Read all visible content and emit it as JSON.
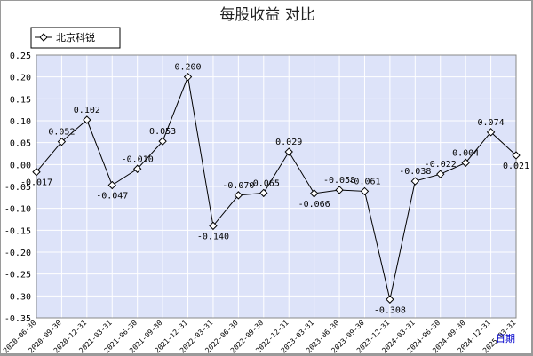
{
  "chart_data": {
    "type": "line",
    "title": "每股收益 对比",
    "period_label": "日期",
    "ylim": [
      -0.35,
      0.25
    ],
    "y_ticks": [
      "0.25",
      "0.20",
      "0.15",
      "0.10",
      "0.05",
      "0.00",
      "-0.05",
      "-0.10",
      "-0.15",
      "-0.20",
      "-0.25",
      "-0.30",
      "-0.35"
    ],
    "grid": true,
    "legend_position": "top-left",
    "colors": {
      "plot_bg": "#dde3f9",
      "grid": "#ffffff",
      "line": "#000000",
      "marker_fill": "#ffffff"
    },
    "categories": [
      "2020-06-30",
      "2020-09-30",
      "2020-12-31",
      "2021-03-31",
      "2021-06-30",
      "2021-09-30",
      "2021-12-31",
      "2022-03-31",
      "2022-06-30",
      "2022-09-30",
      "2022-12-31",
      "2023-03-31",
      "2023-06-30",
      "2023-09-30",
      "2023-12-31",
      "2024-03-31",
      "2024-06-30",
      "2024-09-30",
      "2024-12-31",
      "2025-03-31"
    ],
    "series": [
      {
        "name": "北京科锐",
        "values": [
          -0.017,
          0.052,
          0.102,
          -0.047,
          -0.01,
          0.053,
          0.2,
          -0.14,
          -0.07,
          -0.065,
          0.029,
          -0.066,
          -0.058,
          -0.061,
          -0.308,
          -0.038,
          -0.022,
          0.004,
          0.074,
          0.021
        ],
        "labels": [
          "-0.017",
          "0.052",
          "0.102",
          "-0.047",
          "-0.010",
          "0.053",
          "0.200",
          "-0.140",
          "-0.070",
          "-0.065",
          "0.029",
          "-0.066",
          "-0.058",
          "-0.061",
          "-0.308",
          "-0.038",
          "-0.022",
          "0.004",
          "0.074",
          "0.021"
        ]
      }
    ]
  }
}
